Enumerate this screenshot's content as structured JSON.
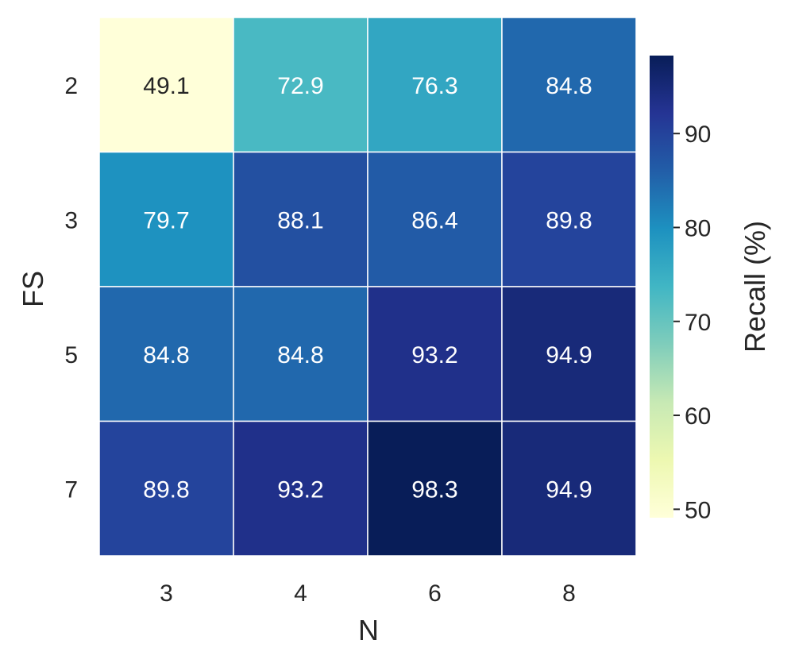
{
  "chart_data": {
    "type": "heatmap",
    "title": "",
    "xlabel": "N",
    "ylabel": "FS",
    "x_categories": [
      "3",
      "4",
      "6",
      "8"
    ],
    "y_categories": [
      "2",
      "3",
      "5",
      "7"
    ],
    "values": [
      [
        49.1,
        72.9,
        76.3,
        84.8
      ],
      [
        79.7,
        88.1,
        86.4,
        89.8
      ],
      [
        84.8,
        84.8,
        93.2,
        94.9
      ],
      [
        89.8,
        93.2,
        98.3,
        94.9
      ]
    ],
    "cell_labels": [
      [
        "49.1",
        "72.9",
        "76.3",
        "84.8"
      ],
      [
        "79.7",
        "88.1",
        "86.4",
        "89.8"
      ],
      [
        "84.8",
        "84.8",
        "93.2",
        "94.9"
      ],
      [
        "89.8",
        "93.2",
        "98.3",
        "94.9"
      ]
    ],
    "colorbar": {
      "label": "Recall (%)",
      "vmin": 49.1,
      "vmax": 98.3,
      "ticks": [
        50,
        60,
        70,
        80,
        90
      ],
      "tick_labels": [
        "50",
        "60",
        "70",
        "80",
        "90"
      ],
      "colormap": "YlGnBu",
      "colormap_stops": [
        "#ffffd9",
        "#edf8b1",
        "#c7e9b4",
        "#7fcdbb",
        "#41b6c4",
        "#1d91c0",
        "#225ea8",
        "#253494",
        "#081d58"
      ]
    },
    "cell_border_color": "#ffffff",
    "text_dark_color": "#262626",
    "text_light_color": "#ffffff"
  }
}
